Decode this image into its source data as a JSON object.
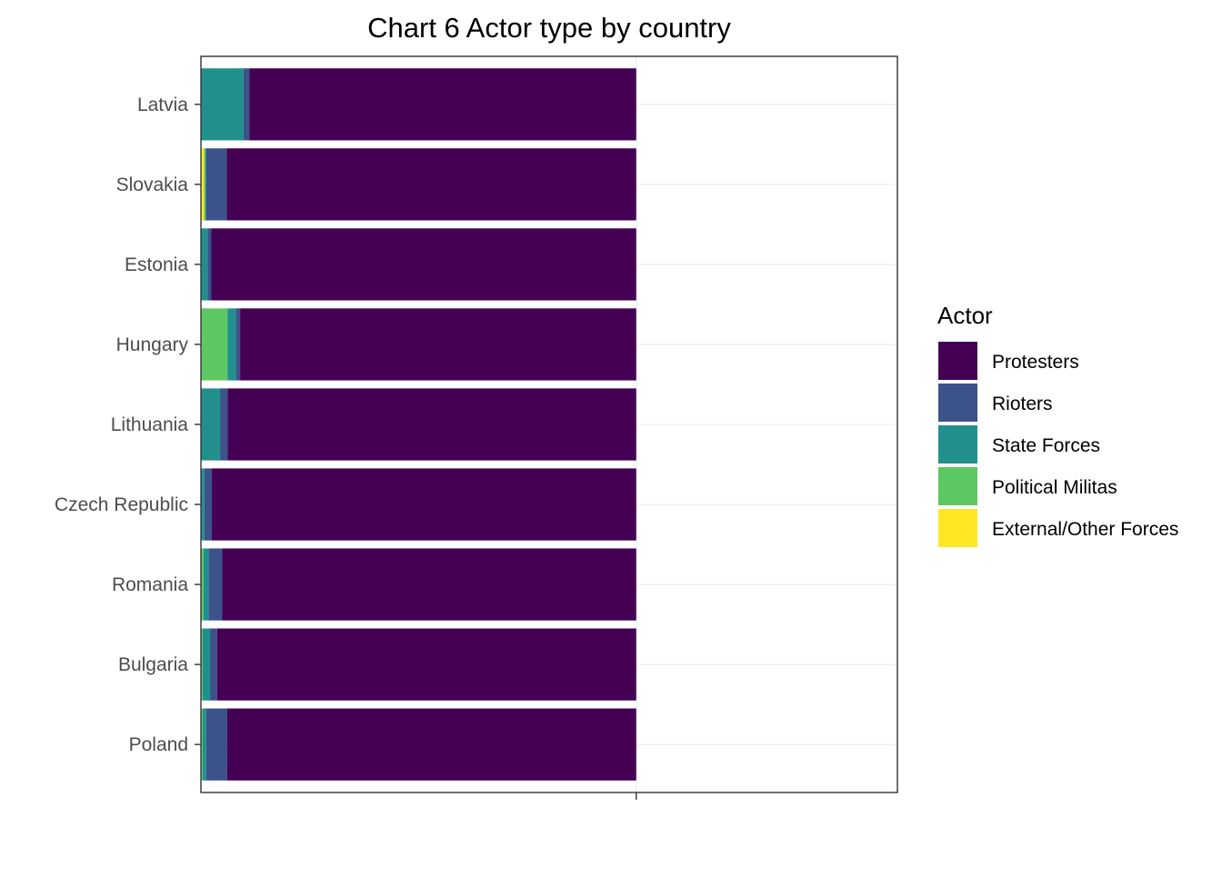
{
  "chart_data": {
    "type": "bar",
    "orientation": "horizontal",
    "stacked": true,
    "normalized": true,
    "title": "Chart 6 Actor type by country",
    "xlabel": "",
    "ylabel": "",
    "xlim": [
      0,
      1.6
    ],
    "x_ticks": [
      1
    ],
    "x_tick_labels": [
      ""
    ],
    "grid": "major gridlines",
    "legend": {
      "title": "Actor",
      "position": "right"
    },
    "categories": [
      "Latvia",
      "Slovakia",
      "Estonia",
      "Hungary",
      "Lithuania",
      "Czech Republic",
      "Romania",
      "Bulgaria",
      "Poland"
    ],
    "series": [
      {
        "name": "External/Other Forces",
        "color": "#FDE725",
        "values": [
          0.0,
          0.007,
          0.0,
          0.0,
          0.0,
          0.0,
          0.0,
          0.0,
          0.0
        ]
      },
      {
        "name": "Political Militas",
        "color": "#5DC863",
        "values": [
          0.0,
          0.004,
          0.0,
          0.061,
          0.0,
          0.0,
          0.006,
          0.004,
          0.004
        ]
      },
      {
        "name": "State Forces",
        "color": "#21908C",
        "values": [
          0.098,
          0.0,
          0.015,
          0.019,
          0.044,
          0.008,
          0.012,
          0.017,
          0.008
        ]
      },
      {
        "name": "Rioters",
        "color": "#3B528B",
        "values": [
          0.013,
          0.048,
          0.009,
          0.01,
          0.017,
          0.017,
          0.031,
          0.016,
          0.048
        ]
      },
      {
        "name": "Protesters",
        "color": "#440154",
        "values": [
          0.889,
          0.941,
          0.976,
          0.91,
          0.939,
          0.975,
          0.951,
          0.963,
          0.94
        ]
      }
    ],
    "legend_order": [
      "Protesters",
      "Rioters",
      "State Forces",
      "Political Militas",
      "External/Other Forces"
    ]
  }
}
